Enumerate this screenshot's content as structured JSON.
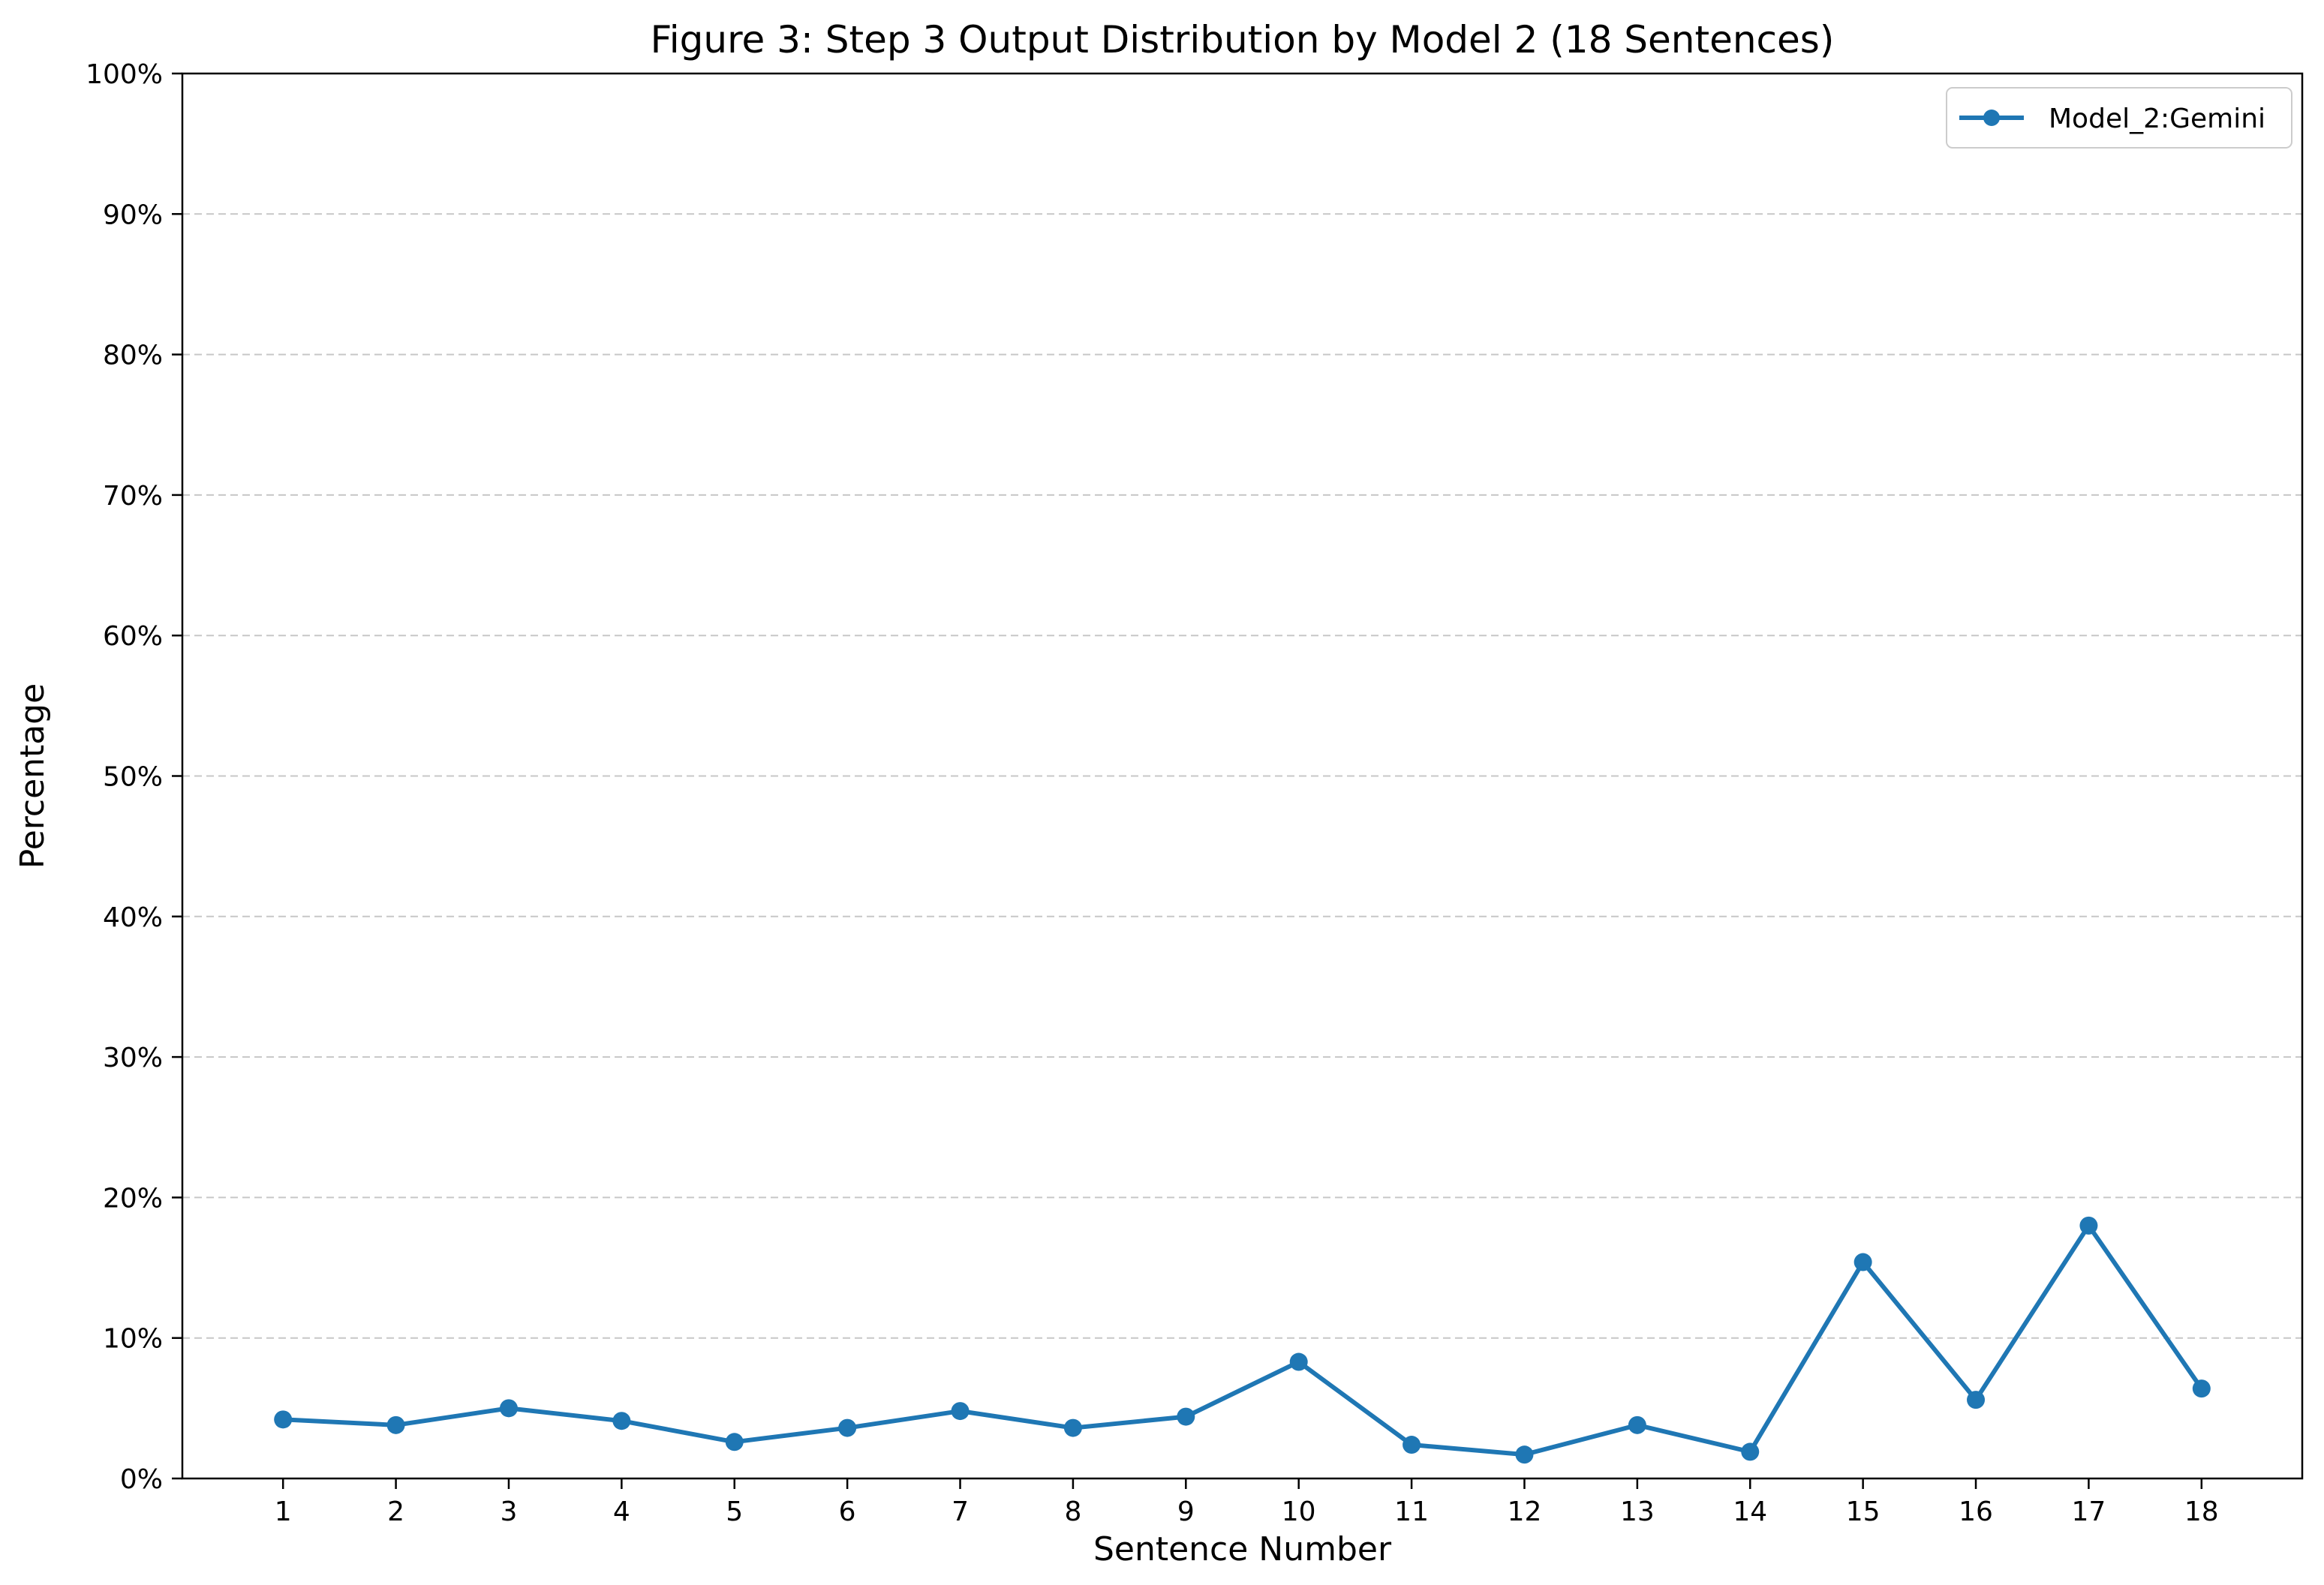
{
  "chart_data": {
    "type": "line",
    "title": "Figure 3: Step 3 Output Distribution by Model 2 (18 Sentences)",
    "xlabel": "Sentence Number",
    "ylabel": "Percentage",
    "categories": [
      "1",
      "2",
      "3",
      "4",
      "5",
      "6",
      "7",
      "8",
      "9",
      "10",
      "11",
      "12",
      "13",
      "14",
      "15",
      "16",
      "17",
      "18"
    ],
    "x": [
      1,
      2,
      3,
      4,
      5,
      6,
      7,
      8,
      9,
      10,
      11,
      12,
      13,
      14,
      15,
      16,
      17,
      18
    ],
    "series": [
      {
        "name": "Model_2:Gemini",
        "color": "#1f77b4",
        "values": [
          4.2,
          3.8,
          5.0,
          4.1,
          2.6,
          3.6,
          4.8,
          3.6,
          4.4,
          8.3,
          2.4,
          1.7,
          3.8,
          1.9,
          15.4,
          5.6,
          18.0,
          6.4
        ]
      }
    ],
    "ylim": [
      0,
      100
    ],
    "yticks": [
      0,
      10,
      20,
      30,
      40,
      50,
      60,
      70,
      80,
      90,
      100
    ],
    "ytick_labels": [
      "0%",
      "10%",
      "20%",
      "30%",
      "40%",
      "50%",
      "60%",
      "70%",
      "80%",
      "90%",
      "100%"
    ],
    "grid": "horizontal dashed",
    "legend_position": "top-right"
  }
}
